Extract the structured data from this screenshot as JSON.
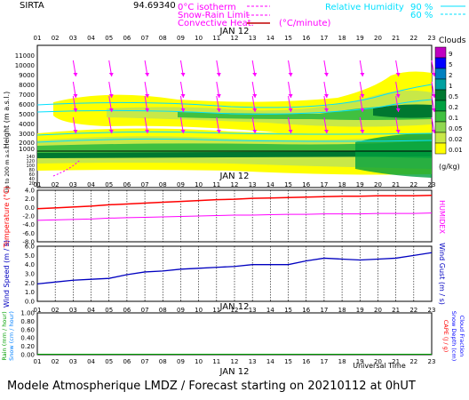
{
  "header": {
    "station": "SIRTA",
    "code": "94.69340",
    "legend_left": [
      {
        "label": "0°C isotherm",
        "color": "#ff00ff"
      },
      {
        "label": "Snow-Rain Limit",
        "color": "#ff00ff"
      },
      {
        "label": "Convective Heat.",
        "color": "#ff00ff"
      }
    ],
    "units_heat": "(°C/minute)",
    "rh_title": "Relative Humidity",
    "rh_levels": [
      "90 %",
      "60 %"
    ],
    "rh_color": "#00e0ff"
  },
  "footer": "Modele Atmospherique LMDZ / Forecast starting on 20210112 at 0hUT",
  "colors": {
    "temperature": "#ff0000",
    "humidex": "#ff00ff",
    "wind": "#0000c0",
    "rain": "#00a000"
  },
  "chart_data": [
    {
      "type": "heatmap",
      "name": "clouds_height",
      "xlabel": "JAN 12",
      "x": [
        "01",
        "02",
        "03",
        "04",
        "05",
        "06",
        "07",
        "08",
        "09",
        "10",
        "11",
        "12",
        "13",
        "14",
        "15",
        "16",
        "17",
        "18",
        "19",
        "20",
        "21",
        "22",
        "23"
      ],
      "ylabel": "Height (m a.s.l.)",
      "y_ticks": [
        "11000",
        "10000",
        "9000",
        "8000",
        "7000",
        "6000",
        "5000",
        "4000",
        "3000",
        "2000",
        "1000",
        "500"
      ],
      "y_ticks_low": [
        "140",
        "120",
        "100",
        "80",
        "60",
        "40",
        "20"
      ],
      "ylabel_low": "Up to 200 m a.s.l.",
      "colorbar_title": "Clouds",
      "colorbar_levels": [
        "9",
        "5",
        "2",
        "1",
        "0.5",
        "0.2",
        "0.1",
        "0.05",
        "0.02",
        "0.01"
      ],
      "colorbar_colors": [
        "#c000c0",
        "#0000ff",
        "#0080c0",
        "#00a0a0",
        "#007830",
        "#00a040",
        "#40c040",
        "#90d850",
        "#c8e848",
        "#ffff00"
      ],
      "colorbar_units": "(g/kg)"
    },
    {
      "type": "line",
      "name": "temperature_humidex",
      "xlabel": "JAN 12",
      "x": [
        "01",
        "02",
        "03",
        "04",
        "05",
        "06",
        "07",
        "08",
        "09",
        "10",
        "11",
        "12",
        "13",
        "14",
        "15",
        "16",
        "17",
        "18",
        "19",
        "20",
        "21",
        "22",
        "23"
      ],
      "ylabel": "Temperature (°C)",
      "ylabel_right": "HUMIDEX",
      "y_ticks": [
        "4.0",
        "2.0",
        "0.0",
        "-2.0",
        "-4.0",
        "-6.0",
        "-8.0"
      ],
      "ylim": [
        -8,
        4
      ],
      "series": [
        {
          "name": "Temperature",
          "values": [
            -0.3,
            -0.1,
            0.1,
            0.3,
            0.6,
            0.8,
            1.0,
            1.2,
            1.4,
            1.6,
            1.8,
            1.9,
            2.1,
            2.2,
            2.3,
            2.4,
            2.5,
            2.6,
            2.6,
            2.7,
            2.7,
            2.7,
            2.8
          ]
        },
        {
          "name": "HUMIDEX",
          "values": [
            -3.0,
            -2.9,
            -2.8,
            -2.7,
            -2.5,
            -2.4,
            -2.3,
            -2.2,
            -2.1,
            -2.0,
            -1.9,
            -1.8,
            -1.8,
            -1.7,
            -1.6,
            -1.6,
            -1.5,
            -1.5,
            -1.5,
            -1.4,
            -1.4,
            -1.4,
            -1.3
          ]
        }
      ]
    },
    {
      "type": "line",
      "name": "wind",
      "x": [
        "01",
        "02",
        "03",
        "04",
        "05",
        "06",
        "07",
        "08",
        "09",
        "10",
        "11",
        "12",
        "13",
        "14",
        "15",
        "16",
        "17",
        "18",
        "19",
        "20",
        "21",
        "22",
        "23"
      ],
      "ylabel": "Wind Speed (m / s)",
      "ylabel_right": "Wind Gust (m / s)",
      "y_ticks": [
        "6.0",
        "5.0",
        "4.0",
        "3.0",
        "2.0",
        "1.0",
        "0.0"
      ],
      "ylim": [
        0,
        6
      ],
      "series": [
        {
          "name": "Wind Speed",
          "values": [
            1.9,
            2.1,
            2.3,
            2.4,
            2.5,
            2.9,
            3.2,
            3.3,
            3.5,
            3.6,
            3.7,
            3.8,
            4.0,
            4.0,
            4.0,
            4.4,
            4.7,
            4.6,
            4.5,
            4.6,
            4.7,
            5.0,
            5.3
          ]
        }
      ]
    },
    {
      "type": "line",
      "name": "precip",
      "xlabel": "JAN 12",
      "xlabel2": "Universal Time",
      "x": [
        "01",
        "02",
        "03",
        "04",
        "05",
        "06",
        "07",
        "08",
        "09",
        "10",
        "11",
        "12",
        "13",
        "14",
        "15",
        "16",
        "17",
        "18",
        "19",
        "20",
        "21",
        "22",
        "23"
      ],
      "ylabel": "Rain (mm / hour)",
      "ylabel_b": "Snow (cm / hour)",
      "ylabel_right": "CAPE (J / g)",
      "ylabel_right_b": "Snow Depth (cm)",
      "ylabel_right_c": "Cloud Fraction",
      "y_ticks": [
        "1.00",
        "0.80",
        "0.60",
        "0.40",
        "0.20",
        "0.00"
      ],
      "ylim": [
        0,
        1
      ],
      "series": [
        {
          "name": "Rain",
          "values": [
            0.01,
            0.01,
            0.01,
            0.01,
            0.01,
            0.01,
            0.01,
            0.01,
            0.01,
            0.01,
            0.01,
            0.01,
            0.01,
            0.01,
            0.01,
            0.01,
            0.01,
            0.01,
            0.01,
            0.01,
            0.01,
            0.01,
            0.01
          ]
        }
      ]
    }
  ]
}
